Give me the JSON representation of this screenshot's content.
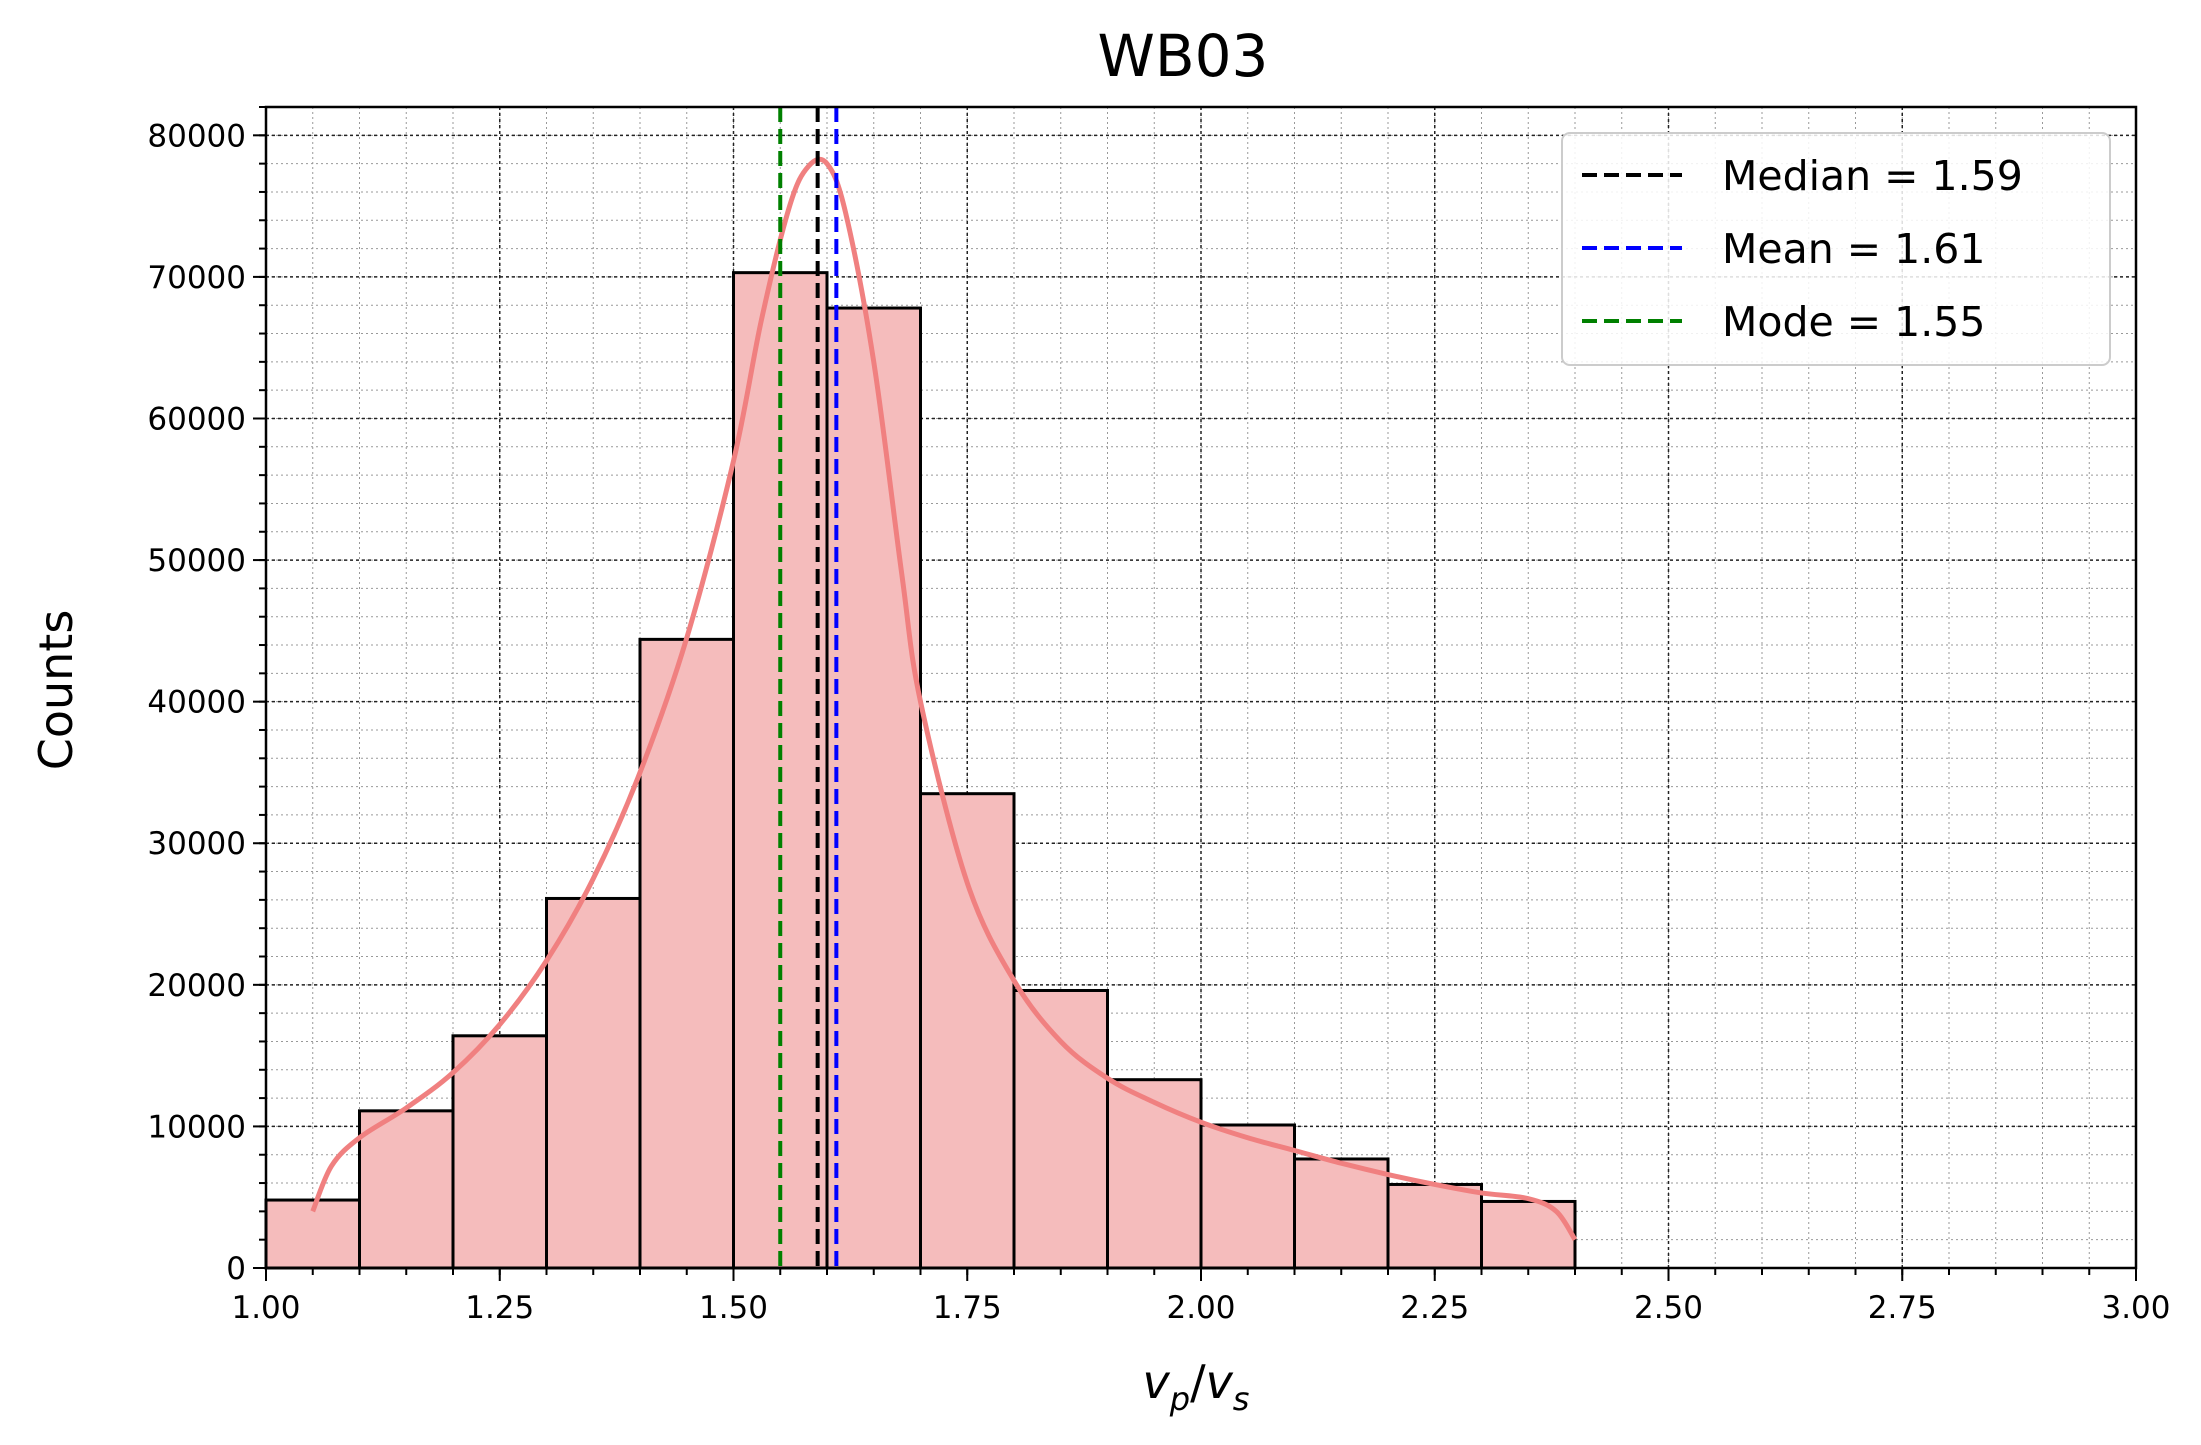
{
  "chart_data": {
    "type": "bar",
    "title": "WB03",
    "xlabel": {
      "main": "v",
      "sub1": "p",
      "slash": "/",
      "main2": "v",
      "sub2": "s"
    },
    "ylabel": "Counts",
    "xlim": [
      1.0,
      3.0
    ],
    "ylim": [
      0,
      82000
    ],
    "grid": true,
    "legend_position": "top-right",
    "x_ticks": [
      "1.00",
      "1.25",
      "1.50",
      "1.75",
      "2.00",
      "2.25",
      "2.50",
      "2.75",
      "3.00"
    ],
    "x_tick_values": [
      1.0,
      1.25,
      1.5,
      1.75,
      2.0,
      2.25,
      2.5,
      2.75,
      3.0
    ],
    "y_ticks": [
      "0",
      "10000",
      "20000",
      "30000",
      "40000",
      "50000",
      "60000",
      "70000",
      "80000"
    ],
    "y_tick_values": [
      0,
      10000,
      20000,
      30000,
      40000,
      50000,
      60000,
      70000,
      80000
    ],
    "bins": [
      {
        "x0": 1.0,
        "x1": 1.1,
        "count": 4800
      },
      {
        "x0": 1.1,
        "x1": 1.2,
        "count": 11100
      },
      {
        "x0": 1.2,
        "x1": 1.3,
        "count": 16400
      },
      {
        "x0": 1.3,
        "x1": 1.4,
        "count": 26100
      },
      {
        "x0": 1.4,
        "x1": 1.5,
        "count": 44400
      },
      {
        "x0": 1.5,
        "x1": 1.6,
        "count": 70300
      },
      {
        "x0": 1.6,
        "x1": 1.7,
        "count": 67800
      },
      {
        "x0": 1.7,
        "x1": 1.8,
        "count": 33500
      },
      {
        "x0": 1.8,
        "x1": 1.9,
        "count": 19600
      },
      {
        "x0": 1.9,
        "x1": 2.0,
        "count": 13300
      },
      {
        "x0": 2.0,
        "x1": 2.1,
        "count": 10100
      },
      {
        "x0": 2.1,
        "x1": 2.2,
        "count": 7700
      },
      {
        "x0": 2.2,
        "x1": 2.3,
        "count": 5900
      },
      {
        "x0": 2.3,
        "x1": 2.4,
        "count": 4700
      }
    ],
    "kde_curve": {
      "x": [
        1.05,
        1.07,
        1.1,
        1.15,
        1.2,
        1.25,
        1.3,
        1.35,
        1.4,
        1.45,
        1.5,
        1.53,
        1.56,
        1.58,
        1.6,
        1.62,
        1.65,
        1.68,
        1.7,
        1.75,
        1.8,
        1.85,
        1.9,
        1.95,
        2.0,
        2.05,
        2.1,
        2.15,
        2.2,
        2.25,
        2.3,
        2.35,
        2.38,
        2.4
      ],
      "y": [
        4000,
        7200,
        9200,
        11300,
        13800,
        17200,
        21700,
        27500,
        35000,
        44500,
        57000,
        67000,
        75000,
        77800,
        78000,
        74500,
        64000,
        49000,
        40000,
        27200,
        20300,
        16000,
        13400,
        11700,
        10300,
        9200,
        8300,
        7400,
        6600,
        5900,
        5300,
        4900,
        4000,
        2000
      ]
    },
    "series": [
      {
        "name": "Median = 1.59",
        "value": 1.59,
        "color": "#000000"
      },
      {
        "name": "Mean = 1.61",
        "value": 1.61,
        "color": "#0000ff"
      },
      {
        "name": "Mode = 1.55",
        "value": 1.55,
        "color": "#008000"
      }
    ],
    "colors": {
      "bar_fill": "#f5bcbc",
      "bar_edge": "#000000",
      "kde_line": "#f08080"
    }
  }
}
